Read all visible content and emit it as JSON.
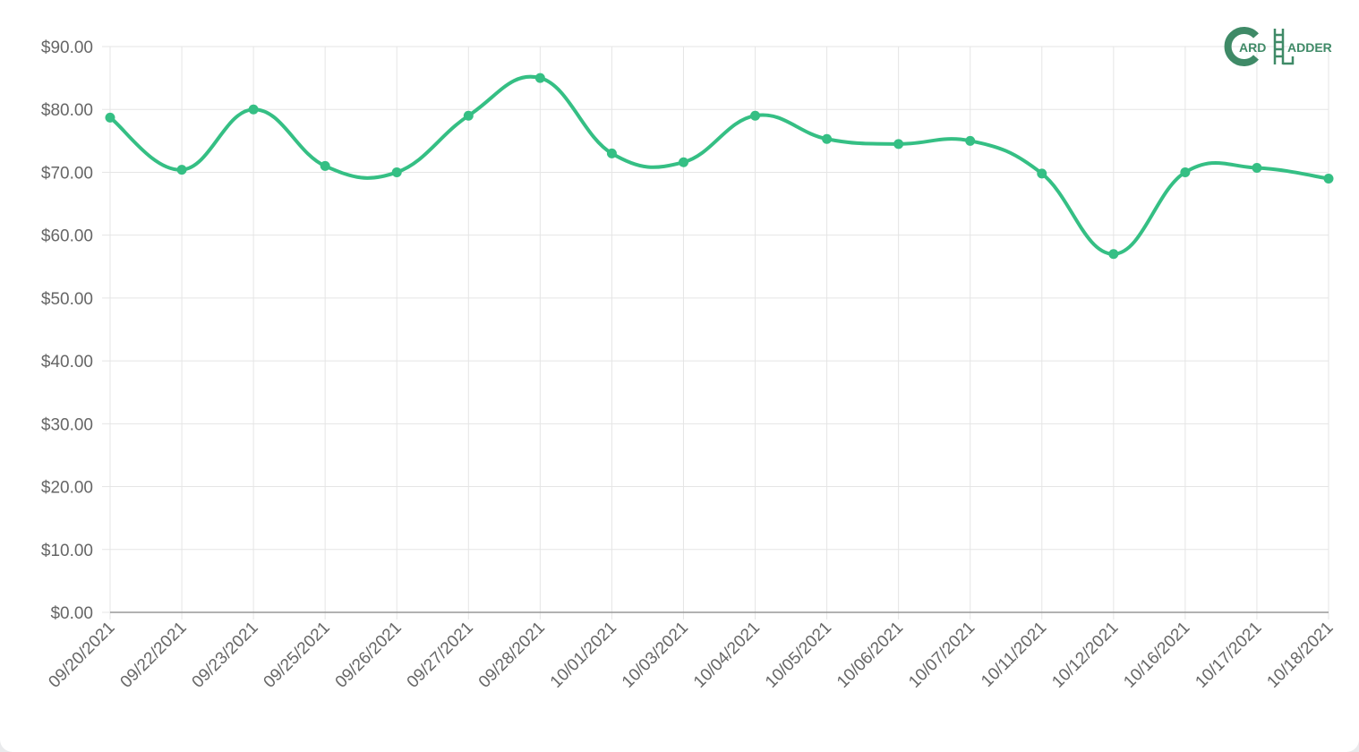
{
  "chart_data": {
    "type": "line",
    "categories": [
      "09/20/2021",
      "09/22/2021",
      "09/23/2021",
      "09/25/2021",
      "09/26/2021",
      "09/27/2021",
      "09/28/2021",
      "10/01/2021",
      "10/03/2021",
      "10/04/2021",
      "10/05/2021",
      "10/06/2021",
      "10/07/2021",
      "10/11/2021",
      "10/12/2021",
      "10/16/2021",
      "10/17/2021",
      "10/18/2021"
    ],
    "series": [
      {
        "values": [
          78.7,
          70.4,
          80.0,
          71.0,
          70.0,
          79.0,
          85.0,
          73.0,
          71.6,
          79.0,
          75.3,
          74.5,
          75.0,
          69.8,
          57.0,
          70.0,
          70.7,
          69.0
        ]
      }
    ],
    "yticks": [
      "$0.00",
      "$10.00",
      "$20.00",
      "$30.00",
      "$40.00",
      "$50.00",
      "$60.00",
      "$70.00",
      "$80.00",
      "$90.00"
    ],
    "ylim": [
      0,
      90
    ],
    "grid": true,
    "legend": "none",
    "title": "",
    "xlabel": "",
    "ylabel": "",
    "colors": {
      "line": "#35bf84",
      "grid": "#e5e5e5",
      "axis": "#999999",
      "tick_label": "#666666"
    }
  },
  "logo": {
    "name": "card-ladder-logo",
    "initial_c": "C",
    "text_ard": "ARD",
    "initial_l": "L",
    "text_adder": "ADDER",
    "color": "#3f8a67"
  }
}
